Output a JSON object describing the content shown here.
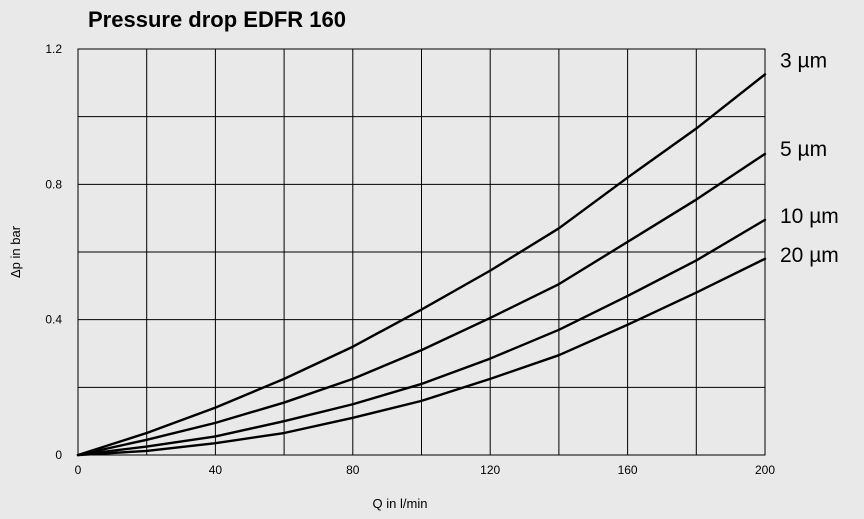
{
  "chart_data": {
    "type": "line",
    "title": "Pressure drop EDFR 160",
    "xlabel": "Q in l/min",
    "ylabel": "Δp in bar",
    "xlim": [
      0,
      200
    ],
    "ylim": [
      0,
      1.2
    ],
    "x_ticks": [
      0,
      40,
      80,
      120,
      160,
      200
    ],
    "x_tick_labels": [
      "0",
      "40",
      "80",
      "120",
      "160",
      "200"
    ],
    "y_ticks": [
      0,
      0.4,
      0.8,
      1.2
    ],
    "y_tick_labels": [
      "0",
      "0.4",
      "0.8",
      "1.2"
    ],
    "x_gridlines": [
      0,
      20,
      40,
      60,
      80,
      100,
      120,
      140,
      160,
      180,
      200
    ],
    "y_gridlines": [
      0,
      0.2,
      0.4,
      0.6,
      0.8,
      1.0,
      1.2
    ],
    "grid": true,
    "legend": "labels at right end of each line",
    "x": [
      0,
      20,
      40,
      60,
      80,
      100,
      120,
      140,
      160,
      180,
      200
    ],
    "series": [
      {
        "name": "3 µm",
        "values": [
          0,
          0.065,
          0.14,
          0.225,
          0.32,
          0.43,
          0.545,
          0.67,
          0.82,
          0.965,
          1.125
        ]
      },
      {
        "name": "5 µm",
        "values": [
          0,
          0.045,
          0.095,
          0.155,
          0.225,
          0.31,
          0.405,
          0.505,
          0.63,
          0.755,
          0.89
        ]
      },
      {
        "name": "10 µm",
        "values": [
          0,
          0.025,
          0.055,
          0.1,
          0.15,
          0.21,
          0.285,
          0.37,
          0.47,
          0.575,
          0.695
        ]
      },
      {
        "name": "20 µm",
        "values": [
          0,
          0.012,
          0.035,
          0.065,
          0.11,
          0.16,
          0.225,
          0.295,
          0.385,
          0.48,
          0.58
        ]
      }
    ]
  }
}
